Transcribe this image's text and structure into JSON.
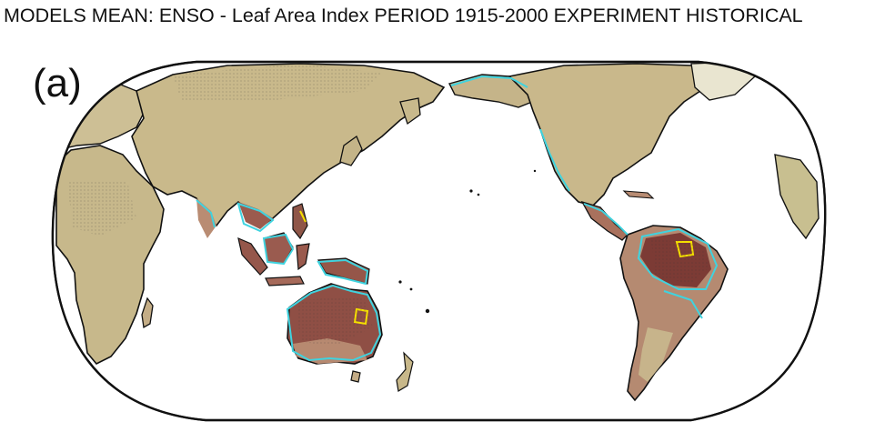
{
  "title": "MODELS MEAN: ENSO - Leaf Area Index PERIOD 1915-2000 EXPERIMENT HISTORICAL",
  "panel_label": "(a)",
  "map": {
    "projection": "Robinson-like (Pacific-centered)",
    "central_longitude": 180,
    "colors": {
      "land_base": "#c9b98c",
      "land_light": "#ddd6b6",
      "land_green": "#bfc48e",
      "land_brown": "#b48a72",
      "land_dark": "#8e5048",
      "land_darkest": "#6e3530",
      "contour_cyan": "#3fd3df",
      "contour_yellow": "#f5e000",
      "coastline": "#111111",
      "frame": "#111111"
    },
    "regions_high": [
      "Amazon basin",
      "Northern Australia",
      "Maritime Continent",
      "Southeast Asia",
      "Central America"
    ]
  }
}
